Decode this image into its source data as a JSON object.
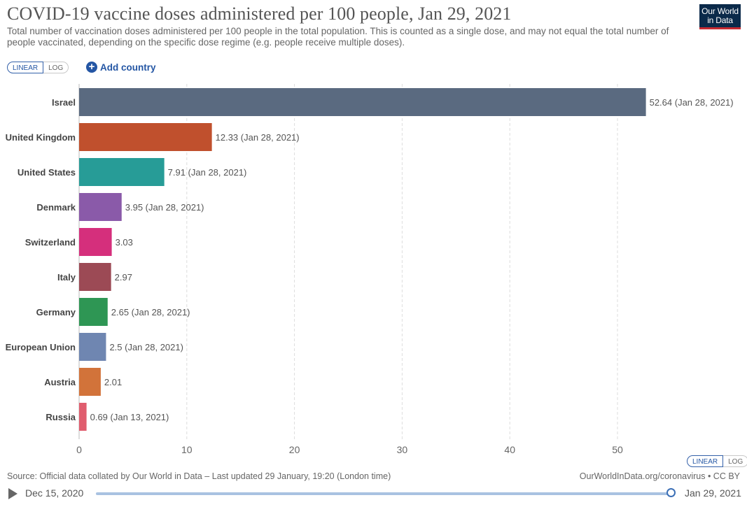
{
  "header": {
    "title": "COVID-19 vaccine doses administered per 100 people, Jan 29, 2021",
    "subtitle": "Total number of vaccination doses administered per 100 people in the total population. This is counted as a single dose, and may not equal the total number of people vaccinated, depending on the specific dose regime (e.g. people receive multiple doses).",
    "logo_line1": "Our World",
    "logo_line2": "in Data"
  },
  "controls": {
    "linear_label": "LINEAR",
    "log_label": "LOG",
    "add_country_label": "Add country",
    "add_icon_glyph": "+"
  },
  "footer": {
    "source": "Source: Official data collated by Our World in Data – Last updated 29 January, 19:20 (London time)",
    "credit": "OurWorldInData.org/coronavirus • CC BY"
  },
  "timeline": {
    "start_label": "Dec 15, 2020",
    "end_label": "Jan 29, 2021",
    "position_fraction": 1.0
  },
  "colors": {
    "accent": "#2456a4",
    "logo_bg": "#0b2a4a",
    "logo_underline": "#c72a32",
    "grid": "#dddddd"
  },
  "chart_data": {
    "type": "bar",
    "orientation": "horizontal",
    "title": "COVID-19 vaccine doses administered per 100 people, Jan 29, 2021",
    "xlim": [
      0,
      55
    ],
    "xticks": [
      0,
      10,
      20,
      30,
      40,
      50
    ],
    "grid": true,
    "categories": [
      "Israel",
      "United Kingdom",
      "United States",
      "Denmark",
      "Switzerland",
      "Italy",
      "Germany",
      "European Union",
      "Austria",
      "Russia"
    ],
    "values": [
      52.64,
      12.33,
      7.91,
      3.95,
      3.03,
      2.97,
      2.65,
      2.5,
      2.01,
      0.69
    ],
    "value_labels": [
      "52.64 (Jan 28, 2021)",
      "12.33 (Jan 28, 2021)",
      "7.91 (Jan 28, 2021)",
      "3.95 (Jan 28, 2021)",
      "3.03",
      "2.97",
      "2.65 (Jan 28, 2021)",
      "2.5 (Jan 28, 2021)",
      "2.01",
      "0.69 (Jan 13, 2021)"
    ],
    "colors": [
      "#5a6a80",
      "#c0502d",
      "#279c97",
      "#8a5aa9",
      "#d52f7c",
      "#9c4a55",
      "#2e9654",
      "#6f86b1",
      "#d2733a",
      "#e05d6e"
    ]
  }
}
